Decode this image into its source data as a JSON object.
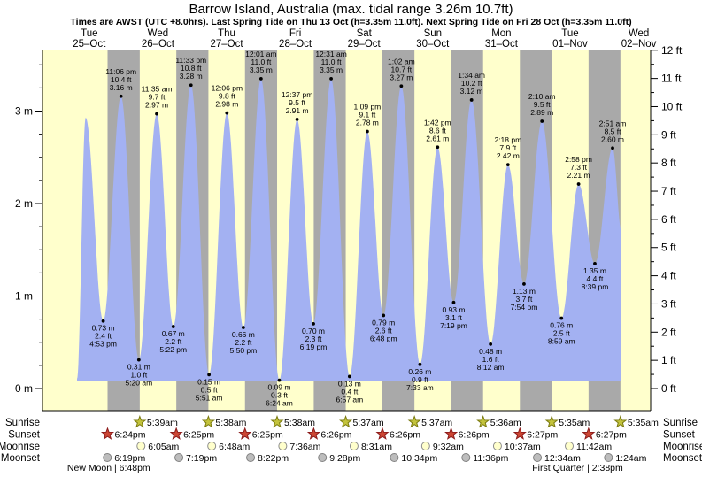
{
  "chart_data": {
    "type": "area",
    "title": "Barrow Island, Australia (max. tidal range 3.26m 10.7ft)",
    "subtitle": "Times are AWST (UTC +8.0hrs). Last Spring Tide on Thu 13 Oct (h=3.35m 11.0ft). Next Spring Tide on Fri 28 Oct (h=3.35m 11.0ft)",
    "days": [
      {
        "dow": "Tue",
        "date": "25–Oct"
      },
      {
        "dow": "Wed",
        "date": "26–Oct"
      },
      {
        "dow": "Thu",
        "date": "27–Oct"
      },
      {
        "dow": "Fri",
        "date": "28–Oct"
      },
      {
        "dow": "Sat",
        "date": "29–Oct"
      },
      {
        "dow": "Sun",
        "date": "30–Oct"
      },
      {
        "dow": "Mon",
        "date": "31–Oct"
      },
      {
        "dow": "Tue",
        "date": "01–Nov"
      },
      {
        "dow": "Wed",
        "date": "02–Nov"
      }
    ],
    "y_axis": {
      "left_ticks_m": [
        0,
        1,
        2,
        3
      ],
      "left_unit": "m",
      "right_ticks_ft": [
        0,
        1,
        2,
        3,
        4,
        5,
        6,
        7,
        8,
        9,
        10,
        11,
        12
      ],
      "right_unit": "ft"
    },
    "curve": {
      "start": {
        "t": 0.322,
        "h": 0.105
      },
      "end": {
        "t": 8.247,
        "h": 1.7
      },
      "fill_base_m": 0.086
    },
    "extremes": [
      {
        "kind": "high",
        "t": 0.448,
        "h": 2.93,
        "time": "",
        "ft": "",
        "m": ""
      },
      {
        "kind": "low",
        "t": 0.7035,
        "h": 0.73,
        "time": "4:53 pm",
        "ft": "2.4 ft",
        "m": "0.73 m"
      },
      {
        "kind": "high",
        "t": 0.9625,
        "h": 3.16,
        "time": "11:06 pm",
        "ft": "10.4 ft",
        "m": "3.16 m"
      },
      {
        "kind": "low",
        "t": 1.2222,
        "h": 0.31,
        "time": "5:20 am",
        "ft": "1.0 ft",
        "m": "0.31 m"
      },
      {
        "kind": "high",
        "t": 1.4826,
        "h": 2.97,
        "time": "11:35 am",
        "ft": "9.7 ft",
        "m": "2.97 m"
      },
      {
        "kind": "low",
        "t": 1.7236,
        "h": 0.67,
        "time": "5:22 pm",
        "ft": "2.2 ft",
        "m": "0.67 m"
      },
      {
        "kind": "high",
        "t": 1.9813,
        "h": 3.28,
        "time": "11:33 pm",
        "ft": "10.8 ft",
        "m": "3.28 m"
      },
      {
        "kind": "low",
        "t": 2.2438,
        "h": 0.15,
        "time": "5:51 am",
        "ft": "0.5 ft",
        "m": "0.15 m"
      },
      {
        "kind": "high",
        "t": 2.5042,
        "h": 2.98,
        "time": "12:06 pm",
        "ft": "9.8 ft",
        "m": "2.98 m"
      },
      {
        "kind": "low",
        "t": 2.7431,
        "h": 0.66,
        "time": "5:50 pm",
        "ft": "2.2 ft",
        "m": "0.66 m"
      },
      {
        "kind": "high",
        "t": 3.0007,
        "h": 3.35,
        "time": "12:01 am",
        "ft": "11.0 ft",
        "m": "3.35 m"
      },
      {
        "kind": "low",
        "t": 3.2667,
        "h": 0.09,
        "time": "6:24 am",
        "ft": "0.3 ft",
        "m": "0.09 m"
      },
      {
        "kind": "high",
        "t": 3.5257,
        "h": 2.91,
        "time": "12:37 pm",
        "ft": "9.5 ft",
        "m": "2.91 m"
      },
      {
        "kind": "low",
        "t": 3.7632,
        "h": 0.7,
        "time": "6:19 pm",
        "ft": "2.3 ft",
        "m": "0.70 m"
      },
      {
        "kind": "high",
        "t": 4.0215,
        "h": 3.35,
        "time": "12:31 am",
        "ft": "11.0 ft",
        "m": "3.35 m"
      },
      {
        "kind": "low",
        "t": 4.2896,
        "h": 0.13,
        "time": "6:57 am",
        "ft": "0.4 ft",
        "m": "0.13 m"
      },
      {
        "kind": "high",
        "t": 4.5479,
        "h": 2.78,
        "time": "1:09 pm",
        "ft": "9.1 ft",
        "m": "2.78 m"
      },
      {
        "kind": "low",
        "t": 4.7833,
        "h": 0.79,
        "time": "6:48 pm",
        "ft": "2.6 ft",
        "m": "0.79 m"
      },
      {
        "kind": "high",
        "t": 5.0431,
        "h": 3.27,
        "time": "1:02 am",
        "ft": "10.7 ft",
        "m": "3.27 m"
      },
      {
        "kind": "low",
        "t": 5.3146,
        "h": 0.26,
        "time": "7:33 am",
        "ft": "0.9 ft",
        "m": "0.26 m"
      },
      {
        "kind": "high",
        "t": 5.5708,
        "h": 2.61,
        "time": "1:42 pm",
        "ft": "8.6 ft",
        "m": "2.61 m"
      },
      {
        "kind": "low",
        "t": 5.8049,
        "h": 0.93,
        "time": "7:19 pm",
        "ft": "3.1 ft",
        "m": "0.93 m"
      },
      {
        "kind": "high",
        "t": 6.0653,
        "h": 3.12,
        "time": "1:34 am",
        "ft": "10.2 ft",
        "m": "3.12 m"
      },
      {
        "kind": "low",
        "t": 6.3417,
        "h": 0.48,
        "time": "8:12 am",
        "ft": "1.6 ft",
        "m": "0.48 m"
      },
      {
        "kind": "high",
        "t": 6.5958,
        "h": 2.42,
        "time": "2:18 pm",
        "ft": "7.9 ft",
        "m": "2.42 m"
      },
      {
        "kind": "low",
        "t": 6.8292,
        "h": 1.13,
        "time": "7:54 pm",
        "ft": "3.7 ft",
        "m": "1.13 m"
      },
      {
        "kind": "high",
        "t": 7.0903,
        "h": 2.89,
        "time": "2:10 am",
        "ft": "9.5 ft",
        "m": "2.89 m"
      },
      {
        "kind": "low",
        "t": 7.3743,
        "h": 0.76,
        "time": "8:59 am",
        "ft": "2.5 ft",
        "m": "0.76 m"
      },
      {
        "kind": "high",
        "t": 7.6236,
        "h": 2.21,
        "time": "2:58 pm",
        "ft": "7.3 ft",
        "m": "2.21 m"
      },
      {
        "kind": "low",
        "t": 7.8604,
        "h": 1.35,
        "time": "8:39 pm",
        "ft": "4.4 ft",
        "m": "1.35 m"
      },
      {
        "kind": "high",
        "t": 8.1188,
        "h": 2.6,
        "time": "2:51 am",
        "ft": "8.5 ft",
        "m": "2.60 m"
      }
    ],
    "night_bands": [
      [
        0.7667,
        1.2354
      ],
      [
        1.7674,
        2.2347
      ],
      [
        2.7674,
        3.2347
      ],
      [
        3.7681,
        4.234
      ],
      [
        4.7681,
        5.234
      ],
      [
        5.7681,
        6.2333
      ],
      [
        6.7688,
        7.2326
      ],
      [
        7.7688,
        8.2326
      ]
    ]
  },
  "almanac": {
    "rows": [
      {
        "label": "Sunrise",
        "marker": "star",
        "color": "sunrise_star",
        "events": [
          {
            "time": "5:39am",
            "t": 1.2354
          },
          {
            "time": "5:38am",
            "t": 2.2347
          },
          {
            "time": "5:38am",
            "t": 3.2347
          },
          {
            "time": "5:37am",
            "t": 4.234
          },
          {
            "time": "5:37am",
            "t": 5.234
          },
          {
            "time": "5:36am",
            "t": 6.2333
          },
          {
            "time": "5:35am",
            "t": 7.2326
          },
          {
            "time": "5:35am",
            "t": 8.2326
          }
        ]
      },
      {
        "label": "Sunset",
        "marker": "star",
        "color": "sunset_star",
        "events": [
          {
            "time": "6:24pm",
            "t": 0.7667
          },
          {
            "time": "6:25pm",
            "t": 1.7674
          },
          {
            "time": "6:25pm",
            "t": 2.7674
          },
          {
            "time": "6:26pm",
            "t": 3.7681
          },
          {
            "time": "6:26pm",
            "t": 4.7681
          },
          {
            "time": "6:26pm",
            "t": 5.7681
          },
          {
            "time": "6:27pm",
            "t": 6.7688
          },
          {
            "time": "6:27pm",
            "t": 7.7688
          }
        ]
      },
      {
        "label": "Moonrise",
        "marker": "circle",
        "color": "moonrise_circle",
        "events": [
          {
            "time": "6:05am",
            "t": 1.2535
          },
          {
            "time": "6:48am",
            "t": 2.2833
          },
          {
            "time": "7:36am",
            "t": 3.3167
          },
          {
            "time": "8:31am",
            "t": 4.3549
          },
          {
            "time": "9:32am",
            "t": 5.3972
          },
          {
            "time": "10:37am",
            "t": 6.4424
          },
          {
            "time": "11:42am",
            "t": 7.4875
          }
        ]
      },
      {
        "label": "Moonset",
        "marker": "circle",
        "color": "moonset_circle",
        "events": [
          {
            "time": "6:19pm",
            "t": 0.7632
          },
          {
            "time": "7:19pm",
            "t": 1.8049
          },
          {
            "time": "8:22pm",
            "t": 2.8486
          },
          {
            "time": "9:28pm",
            "t": 3.8944
          },
          {
            "time": "10:34pm",
            "t": 4.9403
          },
          {
            "time": "11:36pm",
            "t": 5.9833
          },
          {
            "time": "12:34am",
            "t": 7.0236
          },
          {
            "time": "1:24am",
            "t": 8.0583
          }
        ]
      }
    ],
    "phases": [
      {
        "name": "New Moon",
        "time": "6:48pm",
        "t": 0.7833
      },
      {
        "name": "First Quarter",
        "time": "2:38pm",
        "t": 7.6097
      }
    ]
  },
  "colors": {
    "day_band": "#FFFFCC",
    "night_band": "#A9A9A9",
    "tide_fill": "#A3B1F2",
    "day_label": "#EE3A3A",
    "axis": "#000000",
    "annotation": "#000000",
    "sunrise_star": "#C3C33C",
    "sunrise_star_stroke": "#7A7A10",
    "sunset_star": "#CC4633",
    "sunset_star_stroke": "#8B1A1A",
    "moonrise_circle": "#FFFFCC",
    "moonrise_circle_stroke": "#8C8C8C",
    "moonset_circle": "#BDBDBD",
    "moonset_circle_stroke": "#808080"
  }
}
